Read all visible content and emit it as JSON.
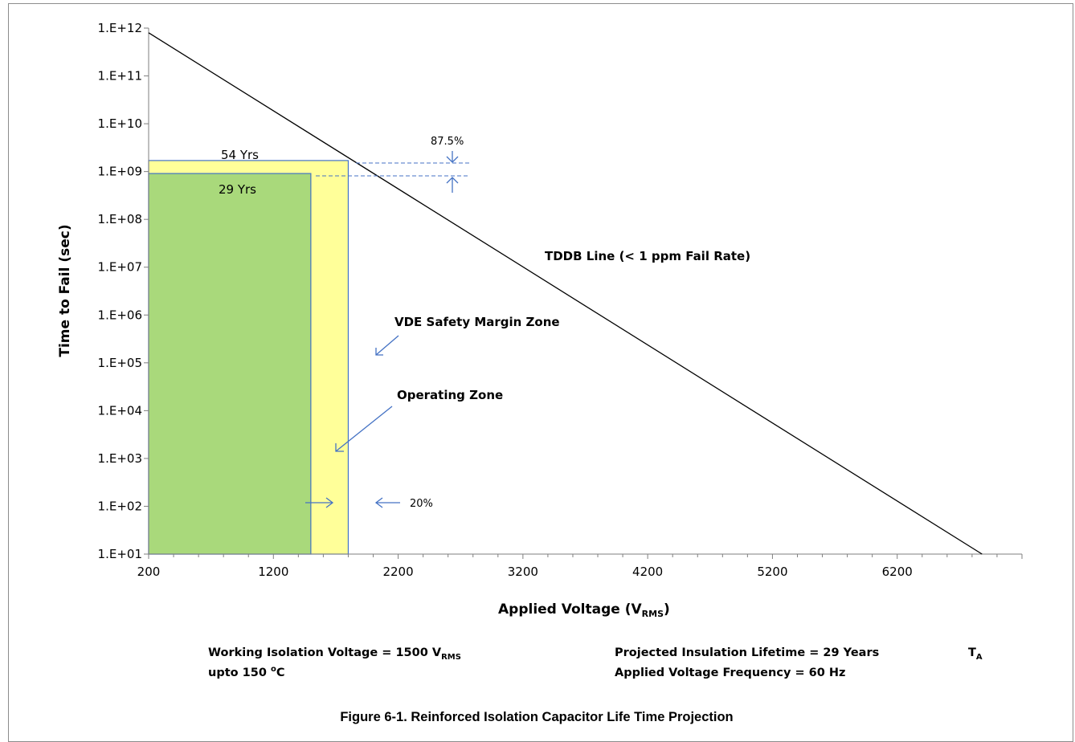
{
  "chart_data": {
    "type": "line",
    "x_scale": "linear",
    "y_scale": "log",
    "xlim": [
      200,
      7200
    ],
    "ylim": [
      "1.E+01",
      "1.E+12"
    ],
    "x_ticks": [
      "200",
      "1200",
      "2200",
      "3200",
      "4200",
      "5200",
      "6200"
    ],
    "y_ticks": [
      "1.E+01",
      "1.E+02",
      "1.E+03",
      "1.E+04",
      "1.E+05",
      "1.E+06",
      "1.E+07",
      "1.E+08",
      "1.E+09",
      "1.E+10",
      "1.E+11",
      "1.E+12"
    ],
    "ylabel": "Time to Fail (sec)",
    "xlabel": {
      "main": "Applied Voltage (V",
      "sub": "RMS",
      "end": ")"
    },
    "series": [
      {
        "name": "TDDB Line (< 1 ppm Fail Rate)",
        "color": "#000000",
        "x": [
          200,
          6880
        ],
        "y": [
          "8.E+11",
          "1.E+01"
        ]
      }
    ],
    "zones": [
      {
        "label": "VDE Safety Margin Zone",
        "color": "#ffff99",
        "x": [
          200,
          1800
        ],
        "y": [
          "1.E+01",
          "1.7E+09"
        ],
        "value_label": "54 Yrs"
      },
      {
        "label": "Operating  Zone",
        "color": "#a9d97b",
        "x": [
          200,
          1500
        ],
        "y": [
          "1.E+01",
          "9.1E+08"
        ],
        "value_label": "29 Yrs"
      }
    ],
    "margins": {
      "time_margin": "87.5%",
      "voltage_margin": "20%"
    },
    "accent_color": "#4472c4"
  },
  "notes": {
    "working_voltage": {
      "text": "Working Isolation Voltage = 1500 V",
      "sub": "RMS"
    },
    "upto": "upto 150 ",
    "upto_sup": "o",
    "upto_end": "C",
    "lifetime": "Projected Insulation Lifetime =  29 Years",
    "ta_main": "T",
    "ta_sub": "A",
    "frequency": "Applied Voltage Frequency = 60 Hz"
  },
  "caption": "Figure 6-1. Reinforced Isolation Capacitor Life Time Projection"
}
